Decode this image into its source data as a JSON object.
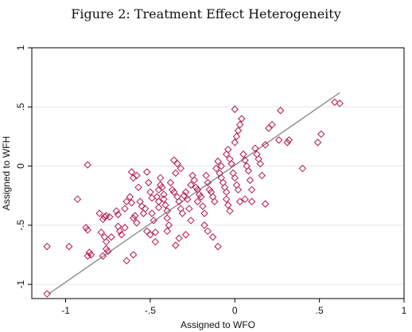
{
  "figure": {
    "title": "Figure 2: Treatment Effect Heterogeneity"
  },
  "chart_data": {
    "type": "scatter",
    "xlabel": "Assigned to WFO",
    "ylabel": "Assigned to WFH",
    "xlim": [
      -1.2,
      1.0
    ],
    "ylim": [
      -1.12,
      1.0
    ],
    "xticks": [
      -1,
      -0.5,
      0,
      0.5,
      1
    ],
    "xtick_labels": [
      "-1",
      "-.5",
      "0",
      ".5",
      "1"
    ],
    "yticks": [
      -1,
      -0.5,
      0,
      0.5,
      1
    ],
    "ytick_labels": [
      "-1",
      "-.5",
      "0",
      ".5",
      "1"
    ],
    "grid": true,
    "legend": "none",
    "colors": {
      "points": "#b5174a",
      "fit_line": "#8c8c8c",
      "grid": "#e6e6e6"
    },
    "fit_line": {
      "x": [
        -1.1,
        0.62
      ],
      "y": [
        -1.08,
        0.62
      ]
    },
    "series": [
      {
        "marker": "diamond-open",
        "points": [
          [
            -1.11,
            -0.68
          ],
          [
            -1.11,
            -1.08
          ],
          [
            -0.98,
            -0.68
          ],
          [
            -0.93,
            -0.28
          ],
          [
            -0.87,
            0.01
          ],
          [
            -0.88,
            -0.52
          ],
          [
            -0.87,
            -0.54
          ],
          [
            -0.86,
            -0.73
          ],
          [
            -0.85,
            -0.75
          ],
          [
            -0.87,
            -0.76
          ],
          [
            -0.8,
            -0.4
          ],
          [
            -0.78,
            -0.45
          ],
          [
            -0.77,
            -0.43
          ],
          [
            -0.76,
            -0.42
          ],
          [
            -0.74,
            -0.43
          ],
          [
            -0.79,
            -0.56
          ],
          [
            -0.77,
            -0.6
          ],
          [
            -0.76,
            -0.64
          ],
          [
            -0.76,
            -0.7
          ],
          [
            -0.75,
            -0.72
          ],
          [
            -0.78,
            -0.76
          ],
          [
            -0.73,
            -0.6
          ],
          [
            -0.7,
            -0.38
          ],
          [
            -0.69,
            -0.41
          ],
          [
            -0.69,
            -0.51
          ],
          [
            -0.68,
            -0.55
          ],
          [
            -0.67,
            -0.58
          ],
          [
            -0.65,
            -0.52
          ],
          [
            -0.64,
            -0.8
          ],
          [
            -0.6,
            -0.75
          ],
          [
            -0.65,
            -0.36
          ],
          [
            -0.64,
            -0.3
          ],
          [
            -0.62,
            -0.26
          ],
          [
            -0.61,
            -0.31
          ],
          [
            -0.6,
            -0.44
          ],
          [
            -0.59,
            -0.42
          ],
          [
            -0.58,
            -0.48
          ],
          [
            -0.61,
            -0.05
          ],
          [
            -0.6,
            -0.1
          ],
          [
            -0.58,
            -0.08
          ],
          [
            -0.56,
            -0.3
          ],
          [
            -0.55,
            -0.34
          ],
          [
            -0.54,
            -0.4
          ],
          [
            -0.53,
            -0.36
          ],
          [
            -0.57,
            -0.18
          ],
          [
            -0.52,
            -0.05
          ],
          [
            -0.51,
            -0.14
          ],
          [
            -0.5,
            -0.22
          ],
          [
            -0.49,
            -0.27
          ],
          [
            -0.49,
            -0.4
          ],
          [
            -0.48,
            -0.46
          ],
          [
            -0.47,
            -0.56
          ],
          [
            -0.52,
            -0.55
          ],
          [
            -0.5,
            -0.58
          ],
          [
            -0.47,
            -0.64
          ],
          [
            -0.45,
            -0.35
          ],
          [
            -0.45,
            -0.3
          ],
          [
            -0.46,
            -0.26
          ],
          [
            -0.45,
            -0.2
          ],
          [
            -0.44,
            -0.16
          ],
          [
            -0.44,
            -0.1
          ],
          [
            -0.43,
            -0.18
          ],
          [
            -0.42,
            -0.24
          ],
          [
            -0.42,
            -0.28
          ],
          [
            -0.41,
            -0.33
          ],
          [
            -0.4,
            -0.38
          ],
          [
            -0.4,
            -0.44
          ],
          [
            -0.39,
            -0.5
          ],
          [
            -0.4,
            -0.55
          ],
          [
            -0.38,
            -0.14
          ],
          [
            -0.37,
            -0.2
          ],
          [
            -0.36,
            -0.22
          ],
          [
            -0.35,
            -0.06
          ],
          [
            -0.34,
            -0.26
          ],
          [
            -0.33,
            -0.3
          ],
          [
            -0.32,
            -0.36
          ],
          [
            -0.31,
            -0.4
          ],
          [
            -0.36,
            0.05
          ],
          [
            -0.34,
            0.02
          ],
          [
            -0.32,
            -0.02
          ],
          [
            -0.3,
            -0.25
          ],
          [
            -0.29,
            -0.22
          ],
          [
            -0.28,
            -0.28
          ],
          [
            -0.27,
            -0.36
          ],
          [
            -0.26,
            -0.46
          ],
          [
            -0.33,
            -0.61
          ],
          [
            -0.35,
            -0.67
          ],
          [
            -0.29,
            -0.58
          ],
          [
            -0.25,
            -0.08
          ],
          [
            -0.24,
            -0.12
          ],
          [
            -0.23,
            -0.18
          ],
          [
            -0.22,
            -0.2
          ],
          [
            -0.21,
            -0.24
          ],
          [
            -0.2,
            -0.26
          ],
          [
            -0.19,
            -0.34
          ],
          [
            -0.18,
            -0.4
          ],
          [
            -0.18,
            -0.5
          ],
          [
            -0.17,
            -0.08
          ],
          [
            -0.16,
            -0.14
          ],
          [
            -0.15,
            -0.2
          ],
          [
            -0.14,
            -0.22
          ],
          [
            -0.13,
            -0.26
          ],
          [
            -0.12,
            -0.3
          ],
          [
            -0.16,
            -0.55
          ],
          [
            -0.13,
            -0.6
          ],
          [
            -0.1,
            -0.68
          ],
          [
            -0.11,
            -0.02
          ],
          [
            -0.1,
            0.04
          ],
          [
            -0.09,
            -0.06
          ],
          [
            -0.08,
            -0.1
          ],
          [
            -0.07,
            -0.14
          ],
          [
            -0.06,
            -0.18
          ],
          [
            -0.05,
            -0.22
          ],
          [
            -0.05,
            -0.28
          ],
          [
            -0.04,
            -0.33
          ],
          [
            -0.03,
            -0.38
          ],
          [
            -0.05,
            0.1
          ],
          [
            -0.04,
            0.14
          ],
          [
            -0.03,
            0.06
          ],
          [
            -0.02,
            0.02
          ],
          [
            -0.01,
            -0.06
          ],
          [
            0.0,
            -0.1
          ],
          [
            0.01,
            -0.16
          ],
          [
            0.02,
            -0.2
          ],
          [
            0.03,
            -0.3
          ],
          [
            0.0,
            0.2
          ],
          [
            0.01,
            0.25
          ],
          [
            0.02,
            0.3
          ],
          [
            0.03,
            0.35
          ],
          [
            0.04,
            0.4
          ],
          [
            0.0,
            0.48
          ],
          [
            0.05,
            0.1
          ],
          [
            0.06,
            0.05
          ],
          [
            0.07,
            0.0
          ],
          [
            0.08,
            -0.04
          ],
          [
            0.09,
            -0.12
          ],
          [
            0.1,
            -0.2
          ],
          [
            0.1,
            -0.3
          ],
          [
            0.12,
            0.15
          ],
          [
            0.13,
            0.1
          ],
          [
            0.14,
            0.06
          ],
          [
            0.15,
            0.02
          ],
          [
            0.16,
            -0.08
          ],
          [
            0.18,
            -0.32
          ],
          [
            0.18,
            0.18
          ],
          [
            0.2,
            0.32
          ],
          [
            0.22,
            0.35
          ],
          [
            0.26,
            0.22
          ],
          [
            0.27,
            0.47
          ],
          [
            0.31,
            0.2
          ],
          [
            0.32,
            0.22
          ],
          [
            0.4,
            -0.02
          ],
          [
            0.49,
            0.2
          ],
          [
            0.51,
            0.27
          ],
          [
            0.59,
            0.54
          ],
          [
            0.62,
            0.53
          ],
          [
            -0.22,
            -0.3
          ],
          [
            -0.26,
            -0.16
          ],
          [
            -0.08,
            0.0
          ],
          [
            0.06,
            -0.28
          ]
        ]
      }
    ]
  }
}
